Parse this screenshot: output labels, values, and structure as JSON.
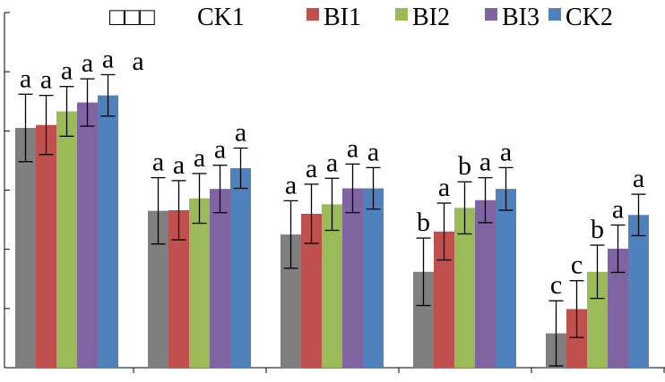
{
  "chart_data": {
    "type": "bar",
    "title": "",
    "xlabel": "",
    "ylabel": "",
    "ylim": [
      0,
      6
    ],
    "categories": [
      "",
      "",
      "",
      "",
      ""
    ],
    "legend": {
      "position": "top",
      "prefix": "□□□"
    },
    "series": [
      {
        "name": "CK1",
        "color": "#7f7f7f",
        "values": [
          4.05,
          2.65,
          2.25,
          1.62,
          0.58
        ],
        "errors": [
          0.57,
          0.56,
          0.57,
          0.57,
          0.55
        ],
        "labels": [
          "a",
          "a",
          "a",
          "b",
          "c"
        ]
      },
      {
        "name": "BI1",
        "color": "#c0504d",
        "values": [
          4.1,
          2.66,
          2.6,
          2.3,
          0.99
        ],
        "errors": [
          0.5,
          0.5,
          0.5,
          0.48,
          0.48
        ],
        "labels": [
          "a",
          "a",
          "a",
          "a",
          "c"
        ]
      },
      {
        "name": "BI2",
        "color": "#9bbb59",
        "values": [
          4.33,
          2.86,
          2.76,
          2.7,
          1.62
        ],
        "errors": [
          0.42,
          0.42,
          0.44,
          0.44,
          0.45
        ],
        "labels": [
          "a",
          "a",
          "a",
          "b",
          "b"
        ]
      },
      {
        "name": "BI3",
        "color": "#8064a2",
        "values": [
          4.48,
          3.02,
          3.03,
          2.83,
          2.01
        ],
        "errors": [
          0.4,
          0.4,
          0.41,
          0.38,
          0.4
        ],
        "labels": [
          "a",
          "a",
          "a",
          "a",
          "a"
        ]
      },
      {
        "name": "CK2",
        "color": "#4f81bd",
        "values": [
          4.6,
          3.37,
          3.03,
          3.02,
          2.58
        ],
        "errors": [
          0.35,
          0.34,
          0.35,
          0.36,
          0.35
        ],
        "labels": [
          "a",
          "a",
          "a",
          "a",
          "a"
        ]
      }
    ],
    "extra_labels": [
      "a",
      "a",
      "a",
      "a",
      "a"
    ]
  }
}
